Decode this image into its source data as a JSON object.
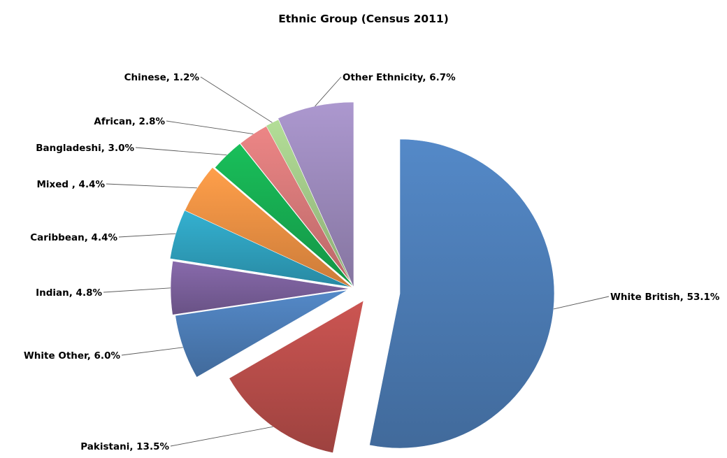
{
  "chart_data": {
    "type": "pie",
    "title": "Ethnic Group (Census 2011)",
    "slices": [
      {
        "label": "White British, 53.1%",
        "value": 53.1,
        "color": "#4F81BD"
      },
      {
        "label": "Pakistani, 13.5%",
        "value": 13.5,
        "color": "#C0504D"
      },
      {
        "label": "White Other, 6.0%",
        "value": 6.0,
        "color": "#4F81BD"
      },
      {
        "label": "Indian, 4.8%",
        "value": 4.8,
        "color": "#8064A2"
      },
      {
        "label": "Caribbean, 4.4%",
        "value": 4.4,
        "color": "#31A7C5"
      },
      {
        "label": "Mixed , 4.4%",
        "value": 4.4,
        "color": "#F79646"
      },
      {
        "label": "Bangladeshi, 3.0%",
        "value": 3.0,
        "color": "#18B455"
      },
      {
        "label": "African, 2.8%",
        "value": 2.8,
        "color": "#E07E7E"
      },
      {
        "label": "Chinese, 1.2%",
        "value": 1.2,
        "color": "#A9D18E"
      },
      {
        "label": "Other Ethnicity, 6.7%",
        "value": 6.7,
        "color": "#A28FC3"
      }
    ],
    "legend": "none",
    "data_labels": "outside with leader lines"
  }
}
